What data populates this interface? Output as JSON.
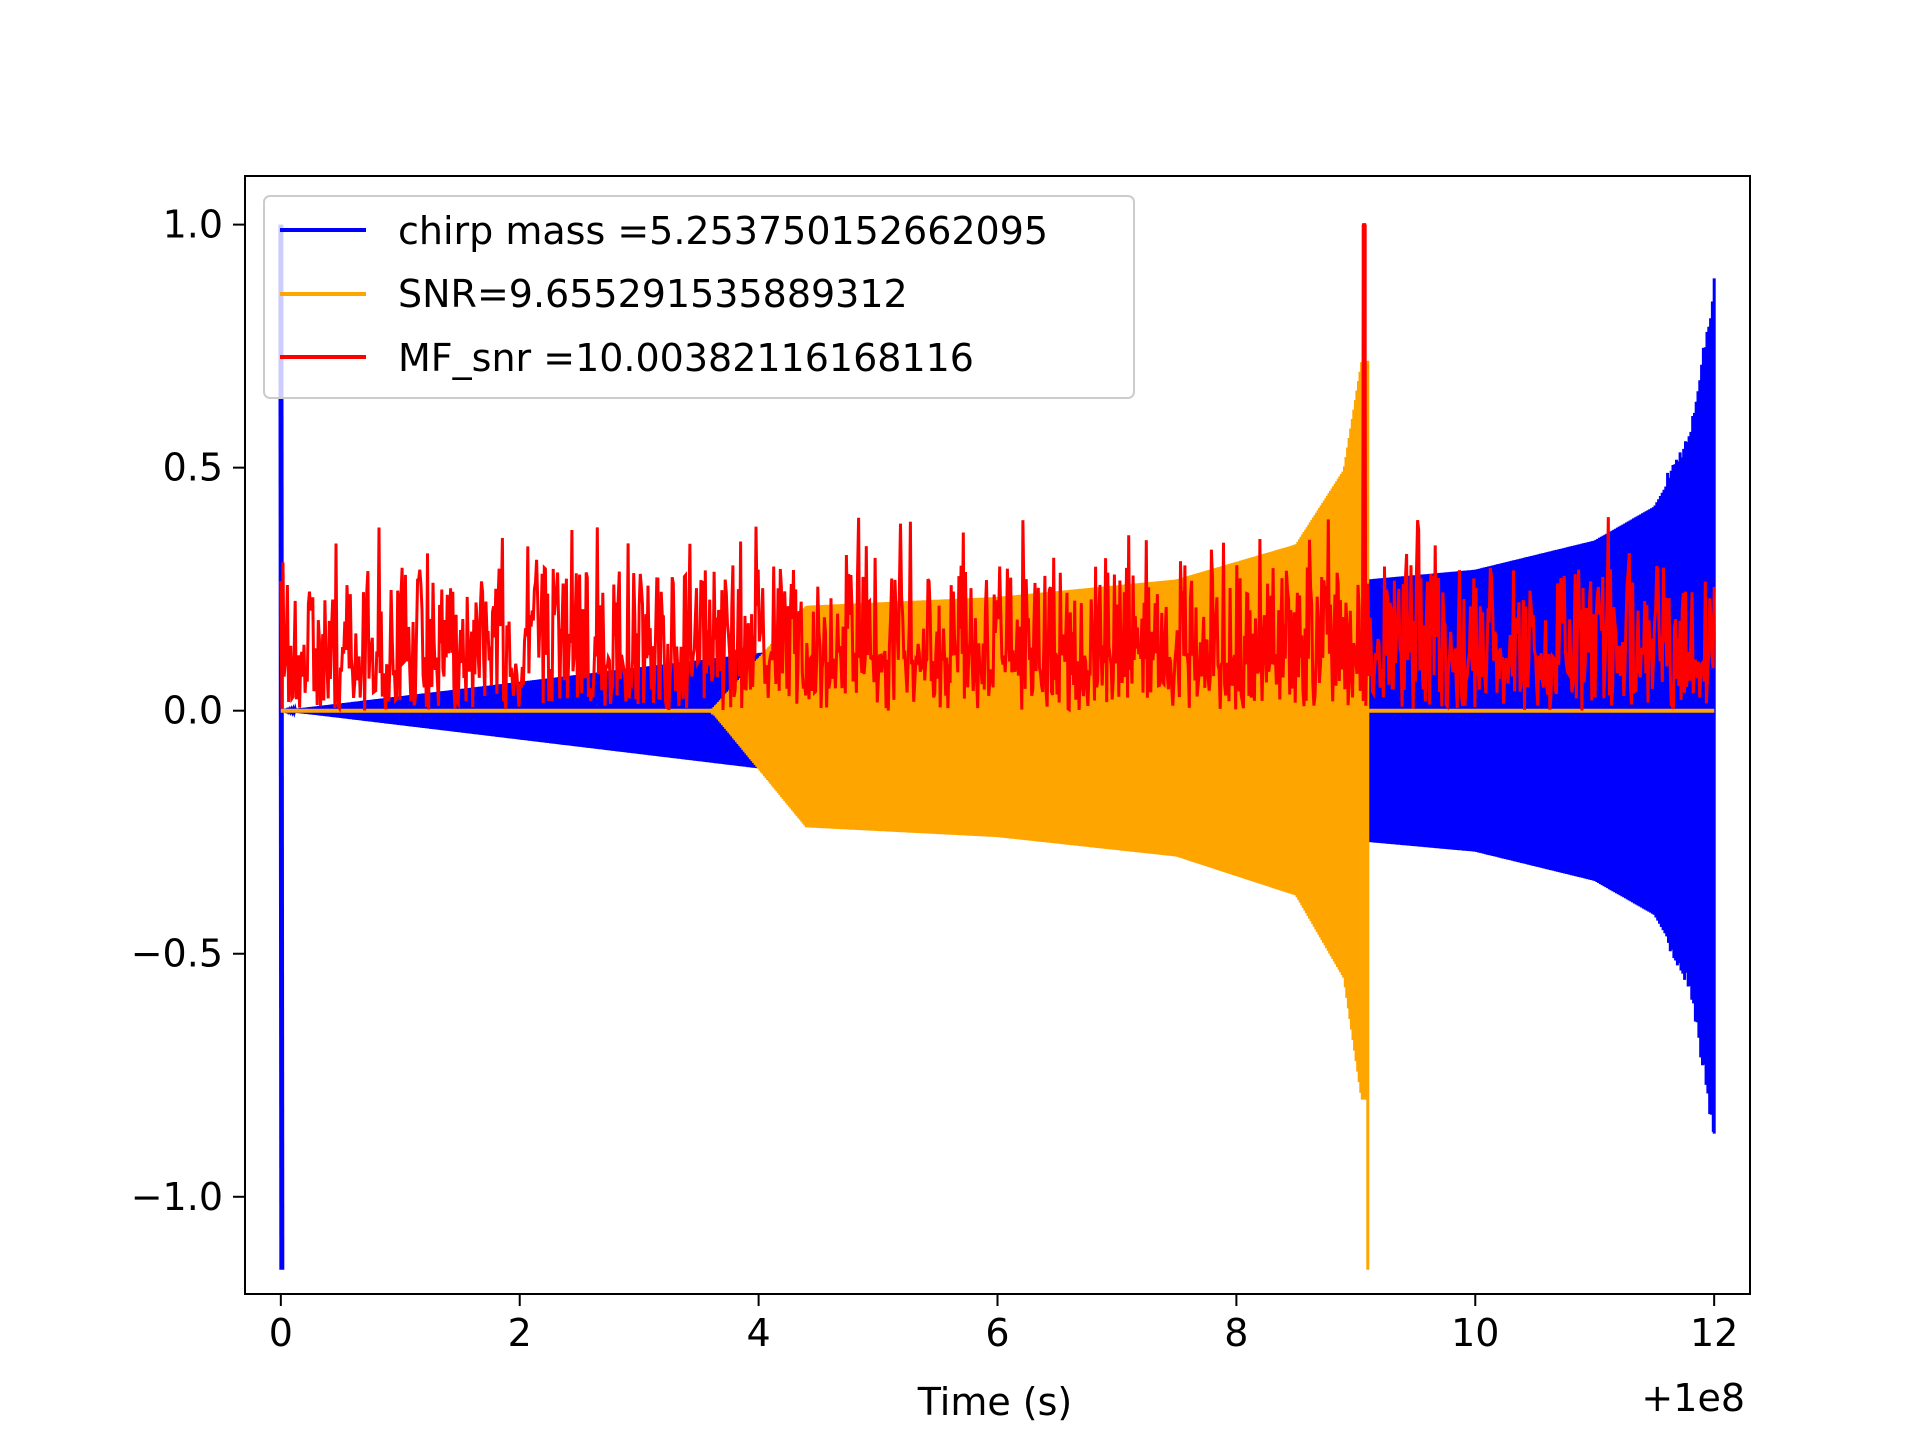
{
  "chart_data": {
    "type": "line",
    "title": "",
    "xlabel": "Time (s)",
    "ylabel": "",
    "x_offset_label": "+1e8",
    "xlim": [
      -0.3,
      12.3
    ],
    "ylim": [
      -1.2,
      1.1
    ],
    "x_ticks": [
      0,
      2,
      4,
      6,
      8,
      10,
      12
    ],
    "x_tick_labels": [
      "0",
      "2",
      "4",
      "6",
      "8",
      "10",
      "12"
    ],
    "y_ticks": [
      -1.0,
      -0.5,
      0.0,
      0.5,
      1.0
    ],
    "y_tick_labels": [
      "−1.0",
      "−0.5",
      "0.0",
      "0.5",
      "1.0"
    ],
    "grid": false,
    "legend_position": "top-left",
    "series": [
      {
        "name": "chirp mass =5.253750152662095",
        "color": "#0000ff",
        "kind": "chirp-waveform",
        "start": 0.0,
        "end": 12.0,
        "peak_max": 0.84,
        "peak_min": -0.87,
        "spike_at": 0.0,
        "spike_max": 1.0,
        "spike_min": -1.15,
        "envelope": [
          {
            "t": 0.0,
            "amp": 0.0
          },
          {
            "t": 9.1,
            "amp": 0.27
          },
          {
            "t": 10.0,
            "amp": 0.29
          },
          {
            "t": 11.0,
            "amp": 0.35
          },
          {
            "t": 11.5,
            "amp": 0.42
          },
          {
            "t": 11.8,
            "amp": 0.55
          },
          {
            "t": 12.0,
            "amp": 0.85
          }
        ]
      },
      {
        "name": "SNR=9.655291535889312",
        "color": "#ffa500",
        "kind": "chirp-waveform",
        "start": 0.0,
        "end": 12.0,
        "merger_at": 9.1,
        "peak_max": 0.68,
        "peak_min": -1.15,
        "envelope": [
          {
            "t": 3.6,
            "amp": 0.0
          },
          {
            "t": 4.4,
            "amp": 0.24
          },
          {
            "t": 6.0,
            "amp": 0.26
          },
          {
            "t": 7.5,
            "amp": 0.3
          },
          {
            "t": 8.5,
            "amp": 0.38
          },
          {
            "t": 8.9,
            "amp": 0.55
          },
          {
            "t": 9.05,
            "amp": 0.8
          }
        ]
      },
      {
        "name": "MF_snr =10.00382116168116",
        "color": "#ff0000",
        "kind": "noise",
        "start": 0.0,
        "end": 12.0,
        "baseline": 0.1,
        "typical_max": 0.3,
        "outlier_max": 0.4,
        "peak": {
          "t": 9.07,
          "value": 1.0
        }
      }
    ]
  }
}
